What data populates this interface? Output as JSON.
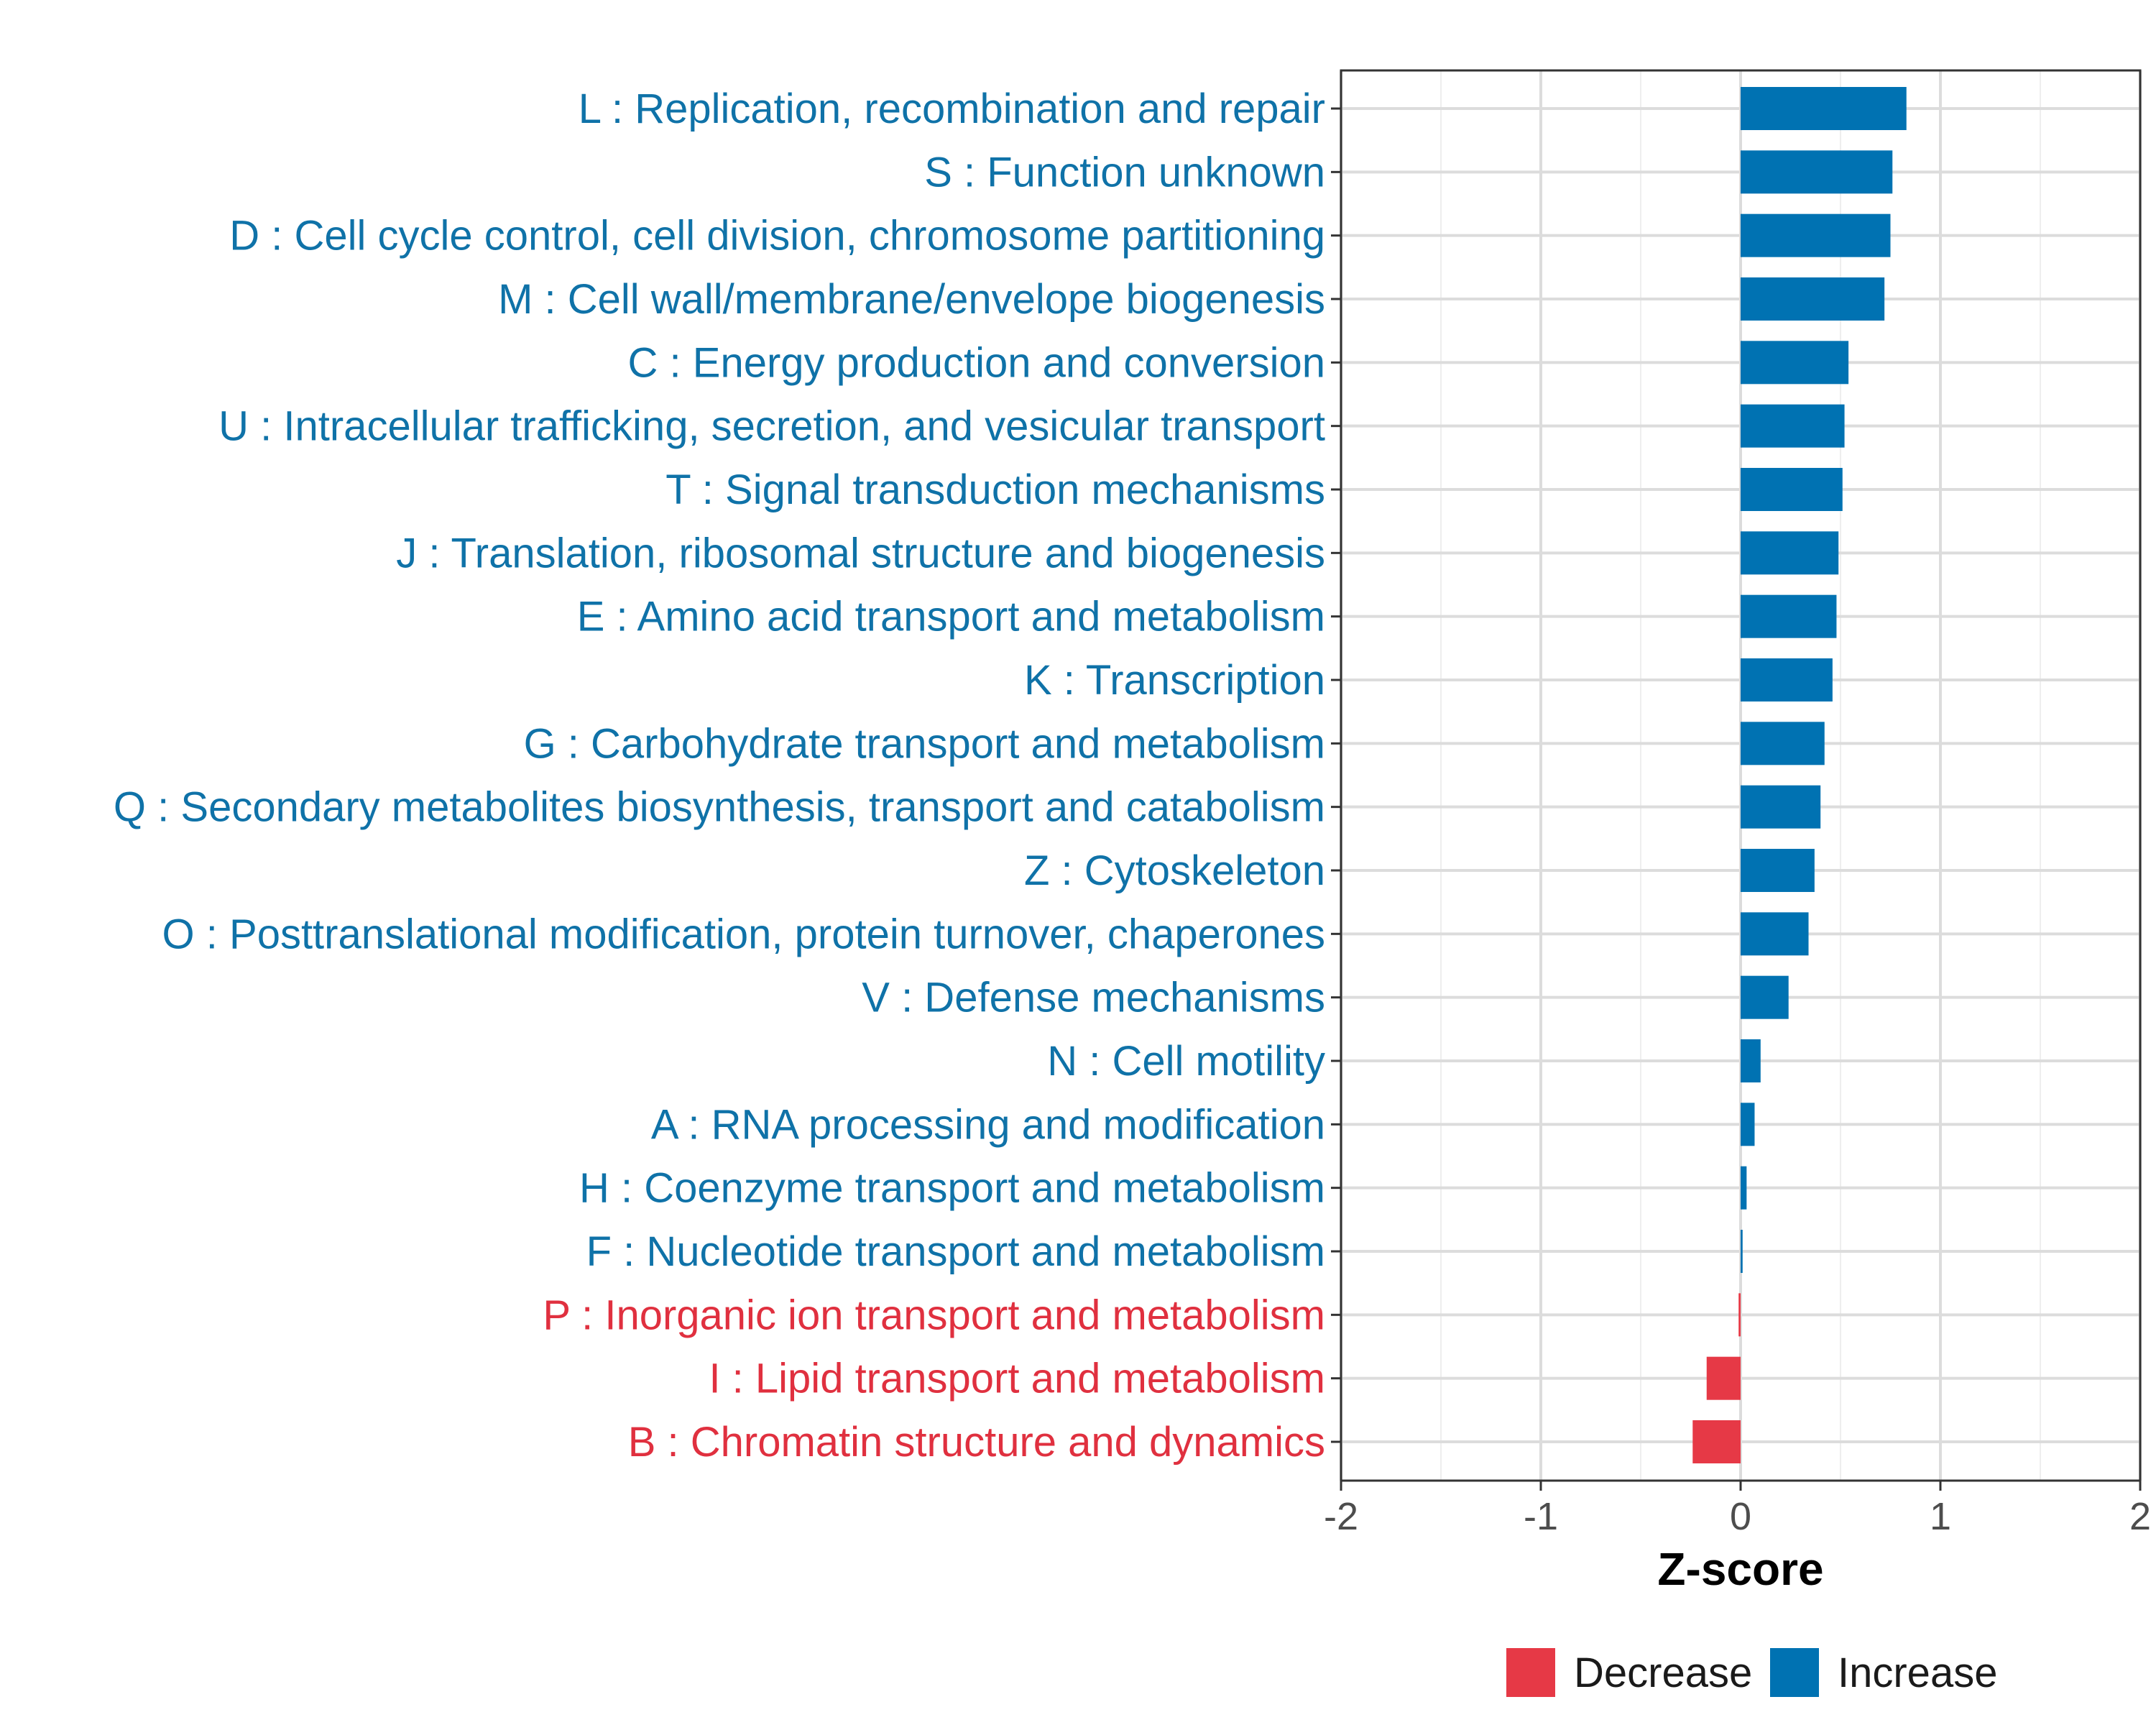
{
  "chart_data": {
    "type": "bar",
    "orientation": "horizontal",
    "title": "",
    "xlabel": "Z-score",
    "ylabel": "",
    "xlim": [
      -2,
      2
    ],
    "xticks": [
      -2,
      -1,
      0,
      1,
      2
    ],
    "xtick_labels": [
      "-2",
      "-1",
      "0",
      "1",
      "2"
    ],
    "grid": true,
    "legend_position": "bottom",
    "colors": {
      "Increase": "#0072b2",
      "Decrease": "#e63946",
      "increase_label_text": "#0f72a8",
      "decrease_label_text": "#e0303f"
    },
    "legend": [
      {
        "name": "Decrease",
        "color": "#e63946"
      },
      {
        "name": "Increase",
        "color": "#0072b2"
      }
    ],
    "categories": [
      {
        "label": "L : Replication, recombination and repair",
        "value": 0.83,
        "group": "Increase"
      },
      {
        "label": "S : Function unknown",
        "value": 0.76,
        "group": "Increase"
      },
      {
        "label": "D : Cell cycle control, cell division, chromosome partitioning",
        "value": 0.75,
        "group": "Increase"
      },
      {
        "label": "M : Cell wall/membrane/envelope biogenesis",
        "value": 0.72,
        "group": "Increase"
      },
      {
        "label": "C : Energy production and conversion",
        "value": 0.54,
        "group": "Increase"
      },
      {
        "label": "U : Intracellular trafficking, secretion, and vesicular transport",
        "value": 0.52,
        "group": "Increase"
      },
      {
        "label": "T : Signal transduction mechanisms",
        "value": 0.51,
        "group": "Increase"
      },
      {
        "label": "J : Translation, ribosomal structure and biogenesis",
        "value": 0.49,
        "group": "Increase"
      },
      {
        "label": "E : Amino acid transport and metabolism",
        "value": 0.48,
        "group": "Increase"
      },
      {
        "label": "K : Transcription",
        "value": 0.46,
        "group": "Increase"
      },
      {
        "label": "G : Carbohydrate transport and metabolism",
        "value": 0.42,
        "group": "Increase"
      },
      {
        "label": "Q : Secondary metabolites biosynthesis, transport and catabolism",
        "value": 0.4,
        "group": "Increase"
      },
      {
        "label": "Z : Cytoskeleton",
        "value": 0.37,
        "group": "Increase"
      },
      {
        "label": "O : Posttranslational modification, protein turnover, chaperones",
        "value": 0.34,
        "group": "Increase"
      },
      {
        "label": "V : Defense mechanisms",
        "value": 0.24,
        "group": "Increase"
      },
      {
        "label": "N : Cell motility",
        "value": 0.1,
        "group": "Increase"
      },
      {
        "label": "A : RNA processing and modification",
        "value": 0.07,
        "group": "Increase"
      },
      {
        "label": "H : Coenzyme transport and metabolism",
        "value": 0.03,
        "group": "Increase"
      },
      {
        "label": "F : Nucleotide transport and metabolism",
        "value": 0.01,
        "group": "Increase"
      },
      {
        "label": "P : Inorganic ion transport and metabolism",
        "value": -0.01,
        "group": "Decrease"
      },
      {
        "label": "I : Lipid transport and metabolism",
        "value": -0.17,
        "group": "Decrease"
      },
      {
        "label": "B : Chromatin structure and dynamics",
        "value": -0.24,
        "group": "Decrease"
      }
    ]
  }
}
